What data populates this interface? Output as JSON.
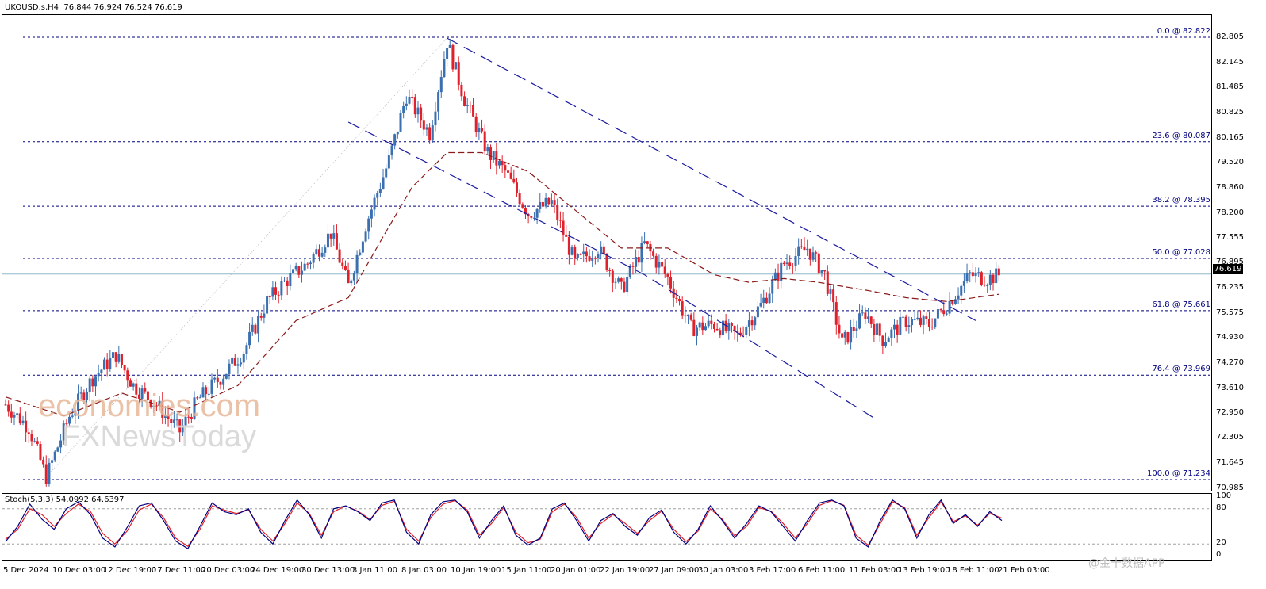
{
  "header": {
    "symbol": "UKOUSD.s,H4",
    "ohlc": "76.844 76.924 76.524 76.619"
  },
  "stoch_header": "Stoch(5,3,3) 54.0992 64.6397",
  "current_price": "76.619",
  "watermark": {
    "brand_top": "economies.com",
    "brand_bottom": "FXNewsToday",
    "corner": "@金十数据APP"
  },
  "colors": {
    "bull": "#3a6fb0",
    "bear": "#e0202a",
    "ma": "#8b1a1a",
    "fib": "#000080",
    "channel": "#1a1aa0",
    "stoch_main": "#000080",
    "stoch_signal": "#e0202a"
  },
  "chart_data": {
    "type": "candlestick",
    "y_ticks": [
      "82.805",
      "82.145",
      "81.485",
      "80.825",
      "80.165",
      "79.520",
      "78.860",
      "78.200",
      "77.555",
      "76.895",
      "76.235",
      "75.575",
      "74.930",
      "74.270",
      "73.610",
      "72.950",
      "72.305",
      "71.645",
      "70.985"
    ],
    "ylim": [
      70.985,
      83.0
    ],
    "x_ticks": [
      "5 Dec 2024",
      "10 Dec 03:00",
      "12 Dec 19:00",
      "17 Dec 11:00",
      "20 Dec 03:00",
      "24 Dec 19:00",
      "30 Dec 13:00",
      "3 Jan 11:00",
      "8 Jan 03:00",
      "10 Jan 19:00",
      "15 Jan 11:00",
      "20 Jan 01:00",
      "22 Jan 19:00",
      "27 Jan 09:00",
      "30 Jan 03:00",
      "3 Feb 17:00",
      "6 Feb 11:00",
      "11 Feb 03:00",
      "13 Feb 19:00",
      "18 Feb 11:00",
      "21 Feb 03:00"
    ],
    "fibonacci": [
      {
        "label": "0.0 @ 82.822",
        "value": 82.822
      },
      {
        "label": "23.6 @ 80.087",
        "value": 80.087
      },
      {
        "label": "38.2 @ 78.395",
        "value": 78.395
      },
      {
        "label": "50.0 @ 77.028",
        "value": 77.028
      },
      {
        "label": "61.8 @ 75.661",
        "value": 75.661
      },
      {
        "label": "76.4 @ 73.969",
        "value": 73.969
      },
      {
        "label": "100.0 @ 71.234",
        "value": 71.234
      }
    ],
    "close_path": [
      [
        0,
        73.2
      ],
      [
        8,
        72.6
      ],
      [
        14,
        71.3
      ],
      [
        22,
        72.9
      ],
      [
        30,
        73.9
      ],
      [
        38,
        74.5
      ],
      [
        44,
        73.7
      ],
      [
        52,
        73.2
      ],
      [
        60,
        72.5
      ],
      [
        66,
        73.3
      ],
      [
        74,
        73.9
      ],
      [
        82,
        74.6
      ],
      [
        90,
        75.9
      ],
      [
        96,
        76.4
      ],
      [
        104,
        76.9
      ],
      [
        112,
        77.7
      ],
      [
        118,
        76.3
      ],
      [
        124,
        77.9
      ],
      [
        132,
        79.6
      ],
      [
        138,
        81.3
      ],
      [
        146,
        80.3
      ],
      [
        152,
        82.7
      ],
      [
        158,
        81.2
      ],
      [
        166,
        79.8
      ],
      [
        172,
        79.3
      ],
      [
        180,
        78.2
      ],
      [
        188,
        78.5
      ],
      [
        196,
        76.9
      ],
      [
        204,
        77.3
      ],
      [
        212,
        76.2
      ],
      [
        220,
        77.4
      ],
      [
        228,
        76.5
      ],
      [
        236,
        75.2
      ],
      [
        244,
        75.3
      ],
      [
        252,
        75.0
      ],
      [
        260,
        75.8
      ],
      [
        268,
        76.9
      ],
      [
        276,
        77.3
      ],
      [
        282,
        76.6
      ],
      [
        288,
        74.8
      ],
      [
        296,
        75.6
      ],
      [
        302,
        74.9
      ],
      [
        310,
        75.4
      ],
      [
        318,
        75.3
      ],
      [
        324,
        75.8
      ],
      [
        332,
        76.6
      ],
      [
        338,
        76.5
      ],
      [
        343,
        76.62
      ]
    ],
    "ma_path": [
      [
        0,
        73.4
      ],
      [
        20,
        72.9
      ],
      [
        40,
        73.5
      ],
      [
        60,
        73.0
      ],
      [
        80,
        73.7
      ],
      [
        100,
        75.4
      ],
      [
        118,
        76.0
      ],
      [
        130,
        77.6
      ],
      [
        140,
        78.9
      ],
      [
        152,
        79.8
      ],
      [
        164,
        79.8
      ],
      [
        180,
        79.3
      ],
      [
        196,
        78.3
      ],
      [
        212,
        77.3
      ],
      [
        228,
        77.3
      ],
      [
        244,
        76.6
      ],
      [
        256,
        76.4
      ],
      [
        268,
        76.5
      ],
      [
        280,
        76.4
      ],
      [
        296,
        76.2
      ],
      [
        310,
        76.0
      ],
      [
        324,
        75.9
      ],
      [
        343,
        76.1
      ]
    ],
    "channel_upper": [
      [
        152,
        82.8
      ],
      [
        290,
        77.2
      ],
      [
        334,
        75.4
      ]
    ],
    "channel_lower": [
      [
        118,
        80.6
      ],
      [
        220,
        76.6
      ],
      [
        300,
        72.8
      ]
    ],
    "stoch_levels": [
      20,
      80
    ],
    "stoch_ylim": [
      0,
      100
    ],
    "stoch_main": [
      24,
      50,
      88,
      62,
      45,
      80,
      92,
      70,
      30,
      15,
      48,
      85,
      90,
      60,
      25,
      12,
      50,
      90,
      75,
      70,
      80,
      40,
      20,
      60,
      95,
      70,
      30,
      80,
      85,
      75,
      60,
      90,
      95,
      40,
      20,
      70,
      92,
      95,
      75,
      30,
      60,
      85,
      35,
      18,
      30,
      80,
      90,
      60,
      25,
      60,
      72,
      50,
      35,
      65,
      78,
      40,
      20,
      45,
      85,
      60,
      30,
      55,
      85,
      75,
      50,
      25,
      60,
      90,
      95,
      85,
      30,
      15,
      60,
      95,
      80,
      30,
      70,
      95,
      55,
      70,
      50,
      75,
      60
    ],
    "stoch_signal": [
      28,
      45,
      80,
      70,
      50,
      72,
      88,
      75,
      38,
      20,
      42,
      78,
      88,
      65,
      30,
      16,
      45,
      85,
      78,
      72,
      78,
      45,
      25,
      55,
      90,
      72,
      35,
      75,
      85,
      76,
      62,
      86,
      93,
      45,
      25,
      65,
      88,
      94,
      78,
      35,
      55,
      82,
      40,
      22,
      28,
      75,
      88,
      65,
      30,
      55,
      70,
      55,
      38,
      60,
      76,
      45,
      24,
      42,
      80,
      62,
      34,
      50,
      82,
      76,
      55,
      30,
      55,
      86,
      94,
      86,
      35,
      18,
      55,
      92,
      82,
      35,
      65,
      92,
      58,
      68,
      52,
      72,
      64
    ]
  }
}
